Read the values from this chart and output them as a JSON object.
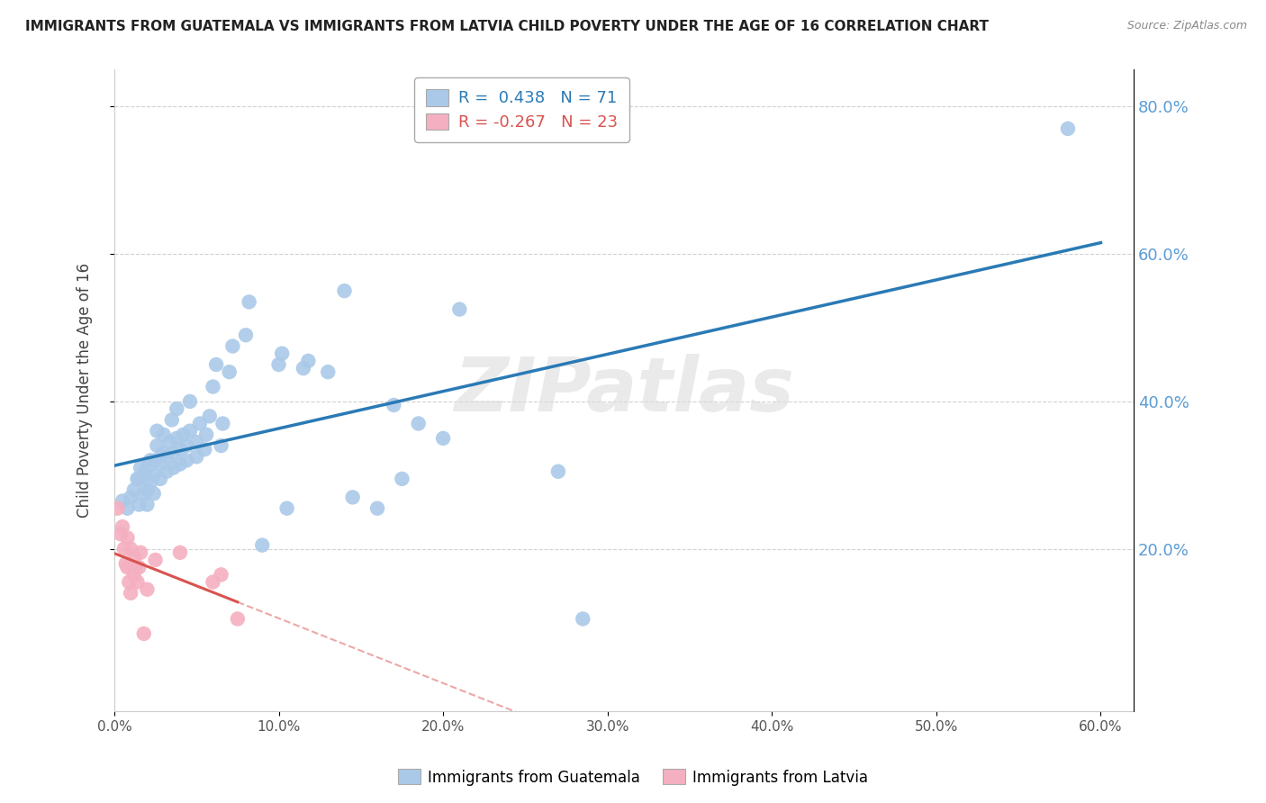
{
  "title": "IMMIGRANTS FROM GUATEMALA VS IMMIGRANTS FROM LATVIA CHILD POVERTY UNDER THE AGE OF 16 CORRELATION CHART",
  "source": "Source: ZipAtlas.com",
  "ylabel": "Child Poverty Under the Age of 16",
  "xlim": [
    0.0,
    0.62
  ],
  "ylim": [
    -0.02,
    0.85
  ],
  "xticks": [
    0.0,
    0.1,
    0.2,
    0.3,
    0.4,
    0.5,
    0.6
  ],
  "xtick_labels": [
    "0.0%",
    "10.0%",
    "20.0%",
    "30.0%",
    "40.0%",
    "50.0%",
    "60.0%"
  ],
  "right_yticks": [
    0.2,
    0.4,
    0.6,
    0.8
  ],
  "right_ytick_labels": [
    "20.0%",
    "40.0%",
    "60.0%",
    "80.0%"
  ],
  "guatemala_R": 0.438,
  "guatemala_N": 71,
  "latvia_R": -0.267,
  "latvia_N": 23,
  "guatemala_color": "#aac9e8",
  "latvia_color": "#f4afc0",
  "regression_line_guatemala_color": "#2a7ab5",
  "regression_line_latvia_color": "#d9534f",
  "watermark": "ZIPatlas",
  "guatemala_points": [
    [
      0.005,
      0.265
    ],
    [
      0.008,
      0.255
    ],
    [
      0.01,
      0.27
    ],
    [
      0.012,
      0.28
    ],
    [
      0.014,
      0.295
    ],
    [
      0.015,
      0.26
    ],
    [
      0.015,
      0.295
    ],
    [
      0.016,
      0.31
    ],
    [
      0.018,
      0.275
    ],
    [
      0.018,
      0.3
    ],
    [
      0.02,
      0.26
    ],
    [
      0.02,
      0.28
    ],
    [
      0.02,
      0.31
    ],
    [
      0.022,
      0.29
    ],
    [
      0.022,
      0.32
    ],
    [
      0.024,
      0.275
    ],
    [
      0.024,
      0.3
    ],
    [
      0.025,
      0.32
    ],
    [
      0.026,
      0.34
    ],
    [
      0.026,
      0.36
    ],
    [
      0.028,
      0.295
    ],
    [
      0.028,
      0.315
    ],
    [
      0.03,
      0.33
    ],
    [
      0.03,
      0.355
    ],
    [
      0.032,
      0.305
    ],
    [
      0.032,
      0.325
    ],
    [
      0.034,
      0.345
    ],
    [
      0.035,
      0.375
    ],
    [
      0.036,
      0.31
    ],
    [
      0.036,
      0.33
    ],
    [
      0.038,
      0.35
    ],
    [
      0.038,
      0.39
    ],
    [
      0.04,
      0.315
    ],
    [
      0.04,
      0.335
    ],
    [
      0.042,
      0.355
    ],
    [
      0.044,
      0.32
    ],
    [
      0.044,
      0.34
    ],
    [
      0.046,
      0.36
    ],
    [
      0.046,
      0.4
    ],
    [
      0.05,
      0.325
    ],
    [
      0.05,
      0.345
    ],
    [
      0.052,
      0.37
    ],
    [
      0.055,
      0.335
    ],
    [
      0.056,
      0.355
    ],
    [
      0.058,
      0.38
    ],
    [
      0.06,
      0.42
    ],
    [
      0.062,
      0.45
    ],
    [
      0.065,
      0.34
    ],
    [
      0.066,
      0.37
    ],
    [
      0.07,
      0.44
    ],
    [
      0.072,
      0.475
    ],
    [
      0.08,
      0.49
    ],
    [
      0.082,
      0.535
    ],
    [
      0.09,
      0.205
    ],
    [
      0.1,
      0.45
    ],
    [
      0.102,
      0.465
    ],
    [
      0.105,
      0.255
    ],
    [
      0.115,
      0.445
    ],
    [
      0.118,
      0.455
    ],
    [
      0.13,
      0.44
    ],
    [
      0.14,
      0.55
    ],
    [
      0.145,
      0.27
    ],
    [
      0.16,
      0.255
    ],
    [
      0.17,
      0.395
    ],
    [
      0.175,
      0.295
    ],
    [
      0.185,
      0.37
    ],
    [
      0.2,
      0.35
    ],
    [
      0.21,
      0.525
    ],
    [
      0.27,
      0.305
    ],
    [
      0.285,
      0.105
    ],
    [
      0.58,
      0.77
    ]
  ],
  "latvia_points": [
    [
      0.002,
      0.255
    ],
    [
      0.004,
      0.22
    ],
    [
      0.005,
      0.23
    ],
    [
      0.006,
      0.2
    ],
    [
      0.007,
      0.18
    ],
    [
      0.008,
      0.215
    ],
    [
      0.008,
      0.175
    ],
    [
      0.009,
      0.155
    ],
    [
      0.01,
      0.14
    ],
    [
      0.01,
      0.2
    ],
    [
      0.012,
      0.19
    ],
    [
      0.012,
      0.165
    ],
    [
      0.013,
      0.175
    ],
    [
      0.014,
      0.155
    ],
    [
      0.015,
      0.175
    ],
    [
      0.016,
      0.195
    ],
    [
      0.018,
      0.085
    ],
    [
      0.02,
      0.145
    ],
    [
      0.025,
      0.185
    ],
    [
      0.04,
      0.195
    ],
    [
      0.06,
      0.155
    ],
    [
      0.065,
      0.165
    ],
    [
      0.075,
      0.105
    ]
  ]
}
